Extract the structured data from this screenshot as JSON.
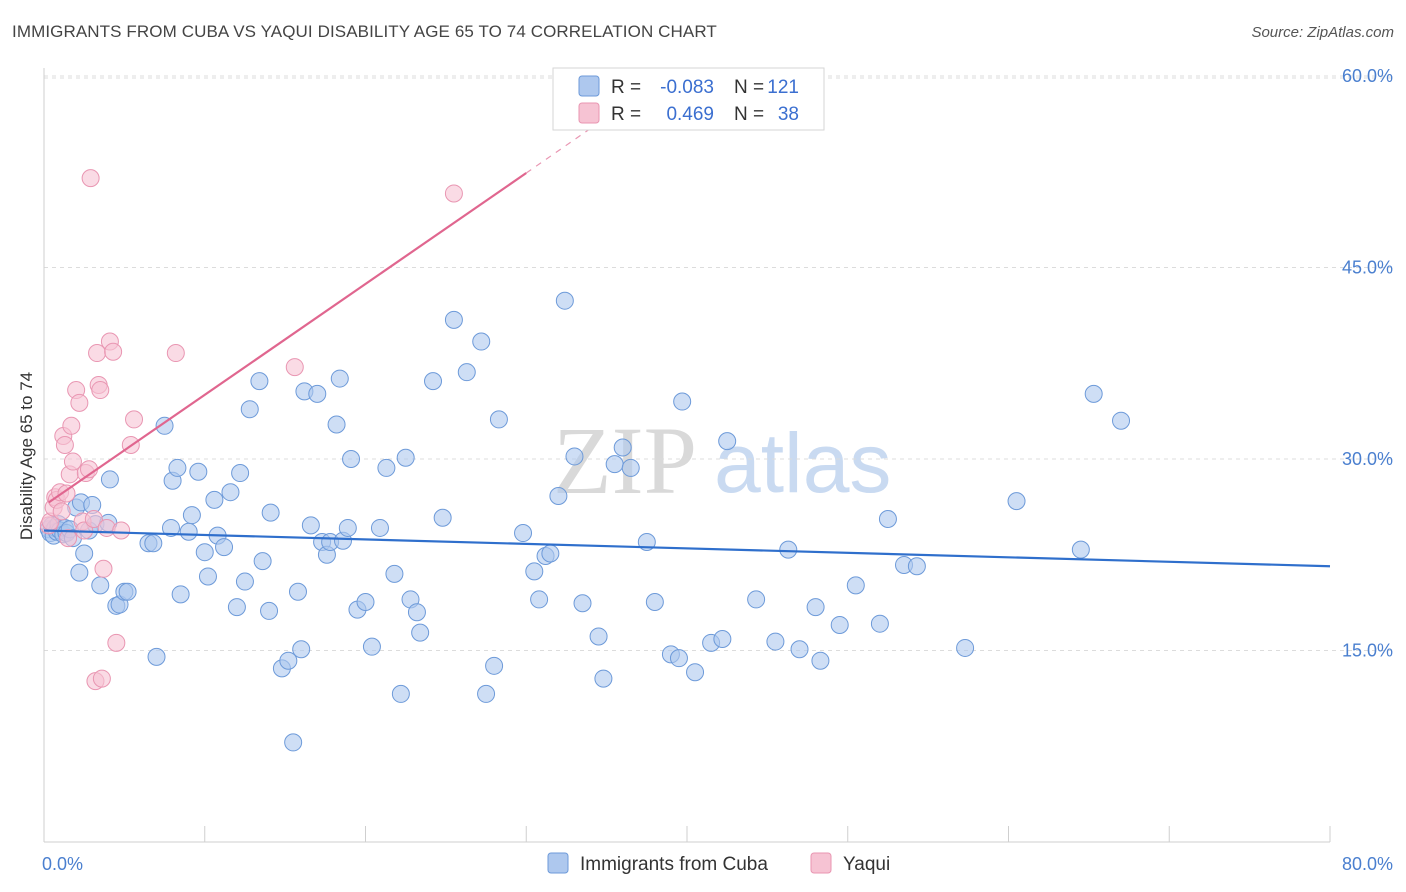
{
  "title": "IMMIGRANTS FROM CUBA VS YAQUI DISABILITY AGE 65 TO 74 CORRELATION CHART",
  "source": "Source: ZipAtlas.com",
  "watermark": {
    "zip": "ZIP",
    "atlas": "atlas"
  },
  "colors": {
    "blue_fill": "#aec8ee",
    "blue_stroke": "#6d9ad9",
    "blue_line": "#2f6fcc",
    "pink_fill": "#f6c3d3",
    "pink_stroke": "#e996b2",
    "pink_line": "#e0668f",
    "tick_label": "#4a7fcf",
    "grid": "#dcdcdc"
  },
  "legend": {
    "rows": [
      {
        "r_label": "R =",
        "r_value": "-0.083",
        "n_label": "N =",
        "n_value": "121",
        "series": "blue"
      },
      {
        "r_label": "R =",
        "r_value": "0.469",
        "n_label": "N =",
        "n_value": "38",
        "series": "pink"
      }
    ]
  },
  "chart_data": {
    "type": "scatter",
    "title": "IMMIGRANTS FROM CUBA VS YAQUI DISABILITY AGE 65 TO 74 CORRELATION CHART",
    "xlabel": "",
    "ylabel": "Disability Age 65 to 74",
    "xlim": [
      0,
      80
    ],
    "ylim": [
      0,
      62.5
    ],
    "x_tick_labels": [
      {
        "value": 0,
        "label": "0.0%"
      },
      {
        "value": 80,
        "label": "80.0%"
      }
    ],
    "y_tick_labels": [
      {
        "value": 15,
        "label": "15.0%"
      },
      {
        "value": 30,
        "label": "30.0%"
      },
      {
        "value": 45,
        "label": "45.0%"
      },
      {
        "value": 60,
        "label": "60.0%"
      }
    ],
    "grid": "horizontal dashed",
    "legend_position": "top-center",
    "series": [
      {
        "name": "Immigrants from Cuba",
        "color": "#aec8ee",
        "r": -0.083,
        "n": 121,
        "trend": {
          "x": [
            0,
            80
          ],
          "y": [
            24.4,
            21.6
          ]
        },
        "points": [
          [
            0.3,
            24.5
          ],
          [
            0.4,
            24.2
          ],
          [
            0.5,
            24.8
          ],
          [
            0.6,
            24.0
          ],
          [
            0.7,
            24.6
          ],
          [
            0.8,
            24.3
          ],
          [
            0.9,
            24.9
          ],
          [
            1.0,
            24.4
          ],
          [
            1.2,
            24.1
          ],
          [
            1.3,
            24.6
          ],
          [
            1.4,
            24.2
          ],
          [
            1.6,
            24.5
          ],
          [
            1.8,
            23.8
          ],
          [
            2.0,
            26.2
          ],
          [
            2.2,
            21.1
          ],
          [
            2.3,
            26.6
          ],
          [
            2.5,
            22.6
          ],
          [
            2.8,
            24.4
          ],
          [
            3.0,
            26.4
          ],
          [
            3.2,
            24.9
          ],
          [
            3.5,
            20.1
          ],
          [
            4.0,
            25.0
          ],
          [
            4.1,
            28.4
          ],
          [
            4.5,
            18.5
          ],
          [
            4.7,
            18.6
          ],
          [
            5.0,
            19.6
          ],
          [
            5.2,
            19.6
          ],
          [
            6.5,
            23.4
          ],
          [
            6.8,
            23.4
          ],
          [
            7.0,
            14.5
          ],
          [
            7.5,
            32.6
          ],
          [
            7.9,
            24.6
          ],
          [
            8.0,
            28.3
          ],
          [
            8.3,
            29.3
          ],
          [
            8.5,
            19.4
          ],
          [
            9.0,
            24.3
          ],
          [
            9.2,
            25.6
          ],
          [
            9.6,
            29.0
          ],
          [
            10.0,
            22.7
          ],
          [
            10.2,
            20.8
          ],
          [
            10.6,
            26.8
          ],
          [
            10.8,
            24.0
          ],
          [
            11.2,
            23.1
          ],
          [
            11.6,
            27.4
          ],
          [
            12.0,
            18.4
          ],
          [
            12.2,
            28.9
          ],
          [
            12.5,
            20.4
          ],
          [
            12.8,
            33.9
          ],
          [
            13.4,
            36.1
          ],
          [
            13.6,
            22.0
          ],
          [
            14.0,
            18.1
          ],
          [
            14.1,
            25.8
          ],
          [
            14.8,
            13.6
          ],
          [
            15.2,
            14.2
          ],
          [
            15.5,
            7.8
          ],
          [
            15.8,
            19.6
          ],
          [
            16.0,
            15.1
          ],
          [
            16.2,
            35.3
          ],
          [
            16.6,
            24.8
          ],
          [
            17.0,
            35.1
          ],
          [
            17.3,
            23.5
          ],
          [
            17.6,
            22.5
          ],
          [
            17.8,
            23.5
          ],
          [
            18.2,
            32.7
          ],
          [
            18.4,
            36.3
          ],
          [
            18.6,
            23.6
          ],
          [
            18.9,
            24.6
          ],
          [
            19.1,
            30.0
          ],
          [
            19.5,
            18.2
          ],
          [
            20.0,
            18.8
          ],
          [
            20.4,
            15.3
          ],
          [
            20.9,
            24.6
          ],
          [
            21.3,
            29.3
          ],
          [
            21.8,
            21.0
          ],
          [
            22.2,
            11.6
          ],
          [
            22.5,
            30.1
          ],
          [
            22.8,
            19.0
          ],
          [
            23.2,
            18.0
          ],
          [
            23.4,
            16.4
          ],
          [
            24.2,
            36.1
          ],
          [
            24.8,
            25.4
          ],
          [
            25.5,
            40.9
          ],
          [
            26.3,
            36.8
          ],
          [
            27.2,
            39.2
          ],
          [
            27.5,
            11.6
          ],
          [
            28.0,
            13.8
          ],
          [
            28.3,
            33.1
          ],
          [
            29.8,
            24.2
          ],
          [
            30.5,
            21.2
          ],
          [
            30.8,
            19.0
          ],
          [
            31.2,
            22.4
          ],
          [
            31.5,
            22.6
          ],
          [
            32.0,
            27.1
          ],
          [
            32.4,
            42.4
          ],
          [
            33.0,
            30.2
          ],
          [
            33.5,
            18.7
          ],
          [
            34.5,
            16.1
          ],
          [
            34.8,
            12.8
          ],
          [
            35.5,
            29.6
          ],
          [
            36.0,
            30.9
          ],
          [
            36.5,
            29.3
          ],
          [
            37.5,
            23.5
          ],
          [
            38.0,
            18.8
          ],
          [
            39.0,
            14.7
          ],
          [
            39.5,
            14.4
          ],
          [
            39.7,
            34.5
          ],
          [
            40.5,
            13.3
          ],
          [
            41.5,
            15.6
          ],
          [
            42.2,
            15.9
          ],
          [
            42.5,
            31.4
          ],
          [
            44.3,
            19.0
          ],
          [
            45.5,
            15.7
          ],
          [
            46.3,
            22.9
          ],
          [
            47.0,
            15.1
          ],
          [
            48.0,
            18.4
          ],
          [
            48.3,
            14.2
          ],
          [
            49.5,
            17.0
          ],
          [
            50.5,
            20.1
          ],
          [
            52.0,
            17.1
          ],
          [
            52.5,
            25.3
          ],
          [
            53.5,
            21.7
          ],
          [
            54.3,
            21.6
          ],
          [
            57.3,
            15.2
          ],
          [
            60.5,
            26.7
          ],
          [
            64.5,
            22.9
          ],
          [
            65.3,
            35.1
          ],
          [
            67.0,
            33.0
          ]
        ]
      },
      {
        "name": "Yaqui",
        "color": "#f6c3d3",
        "r": 0.469,
        "n": 38,
        "trend": {
          "x": [
            0.3,
            30.0
          ],
          "y": [
            26.6,
            52.4
          ]
        },
        "trend_dashed": {
          "x": [
            30.0,
            35.5
          ],
          "y": [
            52.4,
            57.2
          ]
        },
        "points": [
          [
            0.3,
            24.8
          ],
          [
            0.4,
            25.1
          ],
          [
            0.6,
            26.2
          ],
          [
            0.7,
            27.0
          ],
          [
            0.8,
            26.8
          ],
          [
            1.0,
            27.4
          ],
          [
            1.1,
            25.9
          ],
          [
            1.2,
            31.8
          ],
          [
            1.3,
            31.1
          ],
          [
            1.4,
            27.3
          ],
          [
            1.6,
            28.8
          ],
          [
            1.7,
            32.6
          ],
          [
            1.8,
            29.8
          ],
          [
            2.0,
            35.4
          ],
          [
            2.2,
            34.4
          ],
          [
            2.4,
            25.1
          ],
          [
            2.5,
            24.4
          ],
          [
            2.6,
            28.9
          ],
          [
            2.8,
            29.2
          ],
          [
            2.9,
            52.0
          ],
          [
            3.1,
            25.3
          ],
          [
            3.2,
            12.6
          ],
          [
            3.3,
            38.3
          ],
          [
            3.4,
            35.8
          ],
          [
            3.5,
            35.4
          ],
          [
            3.6,
            12.8
          ],
          [
            3.7,
            21.4
          ],
          [
            3.9,
            24.6
          ],
          [
            4.1,
            39.2
          ],
          [
            4.3,
            38.4
          ],
          [
            4.5,
            15.6
          ],
          [
            4.8,
            24.4
          ],
          [
            5.4,
            31.1
          ],
          [
            5.6,
            33.1
          ],
          [
            8.2,
            38.3
          ],
          [
            15.6,
            37.2
          ],
          [
            25.5,
            50.8
          ],
          [
            1.5,
            23.8
          ]
        ]
      }
    ]
  },
  "bottom_legend": [
    {
      "label": "Immigrants from Cuba",
      "series": "blue"
    },
    {
      "label": "Yaqui",
      "series": "pink"
    }
  ]
}
